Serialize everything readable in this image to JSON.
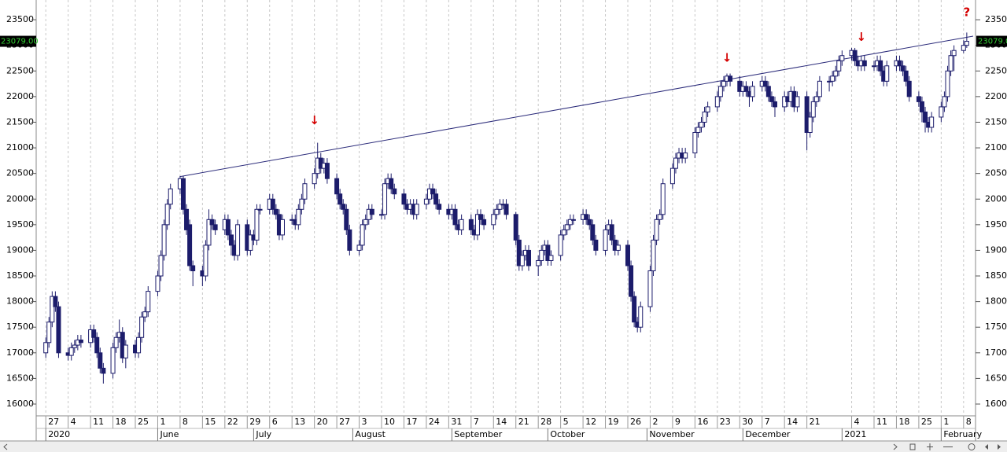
{
  "chart_data": {
    "type": "candlestick",
    "x": [
      "2020-04-27",
      "2020-04-28",
      "2020-04-29",
      "2020-04-30",
      "2020-05-01",
      "2020-05-04",
      "2020-05-05",
      "2020-05-06",
      "2020-05-07",
      "2020-05-08",
      "2020-05-11",
      "2020-05-12",
      "2020-05-13",
      "2020-05-14",
      "2020-05-15",
      "2020-05-18",
      "2020-05-19",
      "2020-05-20",
      "2020-05-21",
      "2020-05-22",
      "2020-05-25",
      "2020-05-26",
      "2020-05-27",
      "2020-05-28",
      "2020-05-29",
      "2020-06-01",
      "2020-06-02",
      "2020-06-03",
      "2020-06-04",
      "2020-06-05",
      "2020-06-08",
      "2020-06-09",
      "2020-06-10",
      "2020-06-11",
      "2020-06-12",
      "2020-06-15",
      "2020-06-16",
      "2020-06-17",
      "2020-06-18",
      "2020-06-19",
      "2020-06-22",
      "2020-06-23",
      "2020-06-24",
      "2020-06-25",
      "2020-06-26",
      "2020-06-29",
      "2020-06-30",
      "2020-07-01",
      "2020-07-02",
      "2020-07-03",
      "2020-07-06",
      "2020-07-07",
      "2020-07-08",
      "2020-07-09",
      "2020-07-10",
      "2020-07-13",
      "2020-07-14",
      "2020-07-15",
      "2020-07-16",
      "2020-07-17",
      "2020-07-20",
      "2020-07-21",
      "2020-07-22",
      "2020-07-23",
      "2020-07-24",
      "2020-07-27",
      "2020-07-28",
      "2020-07-29",
      "2020-07-30",
      "2020-07-31",
      "2020-08-03",
      "2020-08-04",
      "2020-08-05",
      "2020-08-06",
      "2020-08-07",
      "2020-08-10",
      "2020-08-11",
      "2020-08-12",
      "2020-08-13",
      "2020-08-14",
      "2020-08-17",
      "2020-08-18",
      "2020-08-19",
      "2020-08-20",
      "2020-08-21",
      "2020-08-24",
      "2020-08-25",
      "2020-08-26",
      "2020-08-27",
      "2020-08-28",
      "2020-08-31",
      "2020-09-01",
      "2020-09-02",
      "2020-09-03",
      "2020-09-04",
      "2020-09-07",
      "2020-09-08",
      "2020-09-09",
      "2020-09-10",
      "2020-09-11",
      "2020-09-14",
      "2020-09-15",
      "2020-09-16",
      "2020-09-17",
      "2020-09-18",
      "2020-09-21",
      "2020-09-22",
      "2020-09-23",
      "2020-09-24",
      "2020-09-25",
      "2020-09-28",
      "2020-09-29",
      "2020-09-30",
      "2020-10-01",
      "2020-10-02",
      "2020-10-05",
      "2020-10-06",
      "2020-10-07",
      "2020-10-08",
      "2020-10-09",
      "2020-10-12",
      "2020-10-13",
      "2020-10-14",
      "2020-10-15",
      "2020-10-16",
      "2020-10-19",
      "2020-10-20",
      "2020-10-21",
      "2020-10-22",
      "2020-10-23",
      "2020-10-26",
      "2020-10-27",
      "2020-10-28",
      "2020-10-29",
      "2020-10-30",
      "2020-11-02",
      "2020-11-03",
      "2020-11-04",
      "2020-11-05",
      "2020-11-06",
      "2020-11-09",
      "2020-11-10",
      "2020-11-11",
      "2020-11-12",
      "2020-11-13",
      "2020-11-16",
      "2020-11-17",
      "2020-11-18",
      "2020-11-19",
      "2020-11-20",
      "2020-11-23",
      "2020-11-24",
      "2020-11-25",
      "2020-11-26",
      "2020-11-27",
      "2020-11-30",
      "2020-12-01",
      "2020-12-02",
      "2020-12-03",
      "2020-12-04",
      "2020-12-07",
      "2020-12-08",
      "2020-12-09",
      "2020-12-10",
      "2020-12-11",
      "2020-12-14",
      "2020-12-15",
      "2020-12-16",
      "2020-12-17",
      "2020-12-18",
      "2020-12-21",
      "2020-12-22",
      "2020-12-23",
      "2020-12-24",
      "2020-12-25",
      "2020-12-28",
      "2020-12-29",
      "2020-12-30",
      "2020-12-31",
      "2021-01-01",
      "2021-01-04",
      "2021-01-05",
      "2021-01-06",
      "2021-01-07",
      "2021-01-08",
      "2021-01-11",
      "2021-01-12",
      "2021-01-13",
      "2021-01-14",
      "2021-01-15",
      "2021-01-18",
      "2021-01-19",
      "2021-01-20",
      "2021-01-21",
      "2021-01-22",
      "2021-01-25",
      "2021-01-26",
      "2021-01-27",
      "2021-01-28",
      "2021-01-29",
      "2021-02-01",
      "2021-02-02",
      "2021-02-03",
      "2021-02-04",
      "2021-02-05",
      "2021-02-08",
      "2021-02-09"
    ],
    "open": [
      17000,
      17200,
      17600,
      18100,
      17900,
      17000,
      16950,
      17100,
      17150,
      17250,
      17200,
      17450,
      17300,
      17000,
      16700,
      16600,
      17100,
      17300,
      17400,
      16900,
      17150,
      17000,
      17300,
      17700,
      17800,
      18200,
      18500,
      18900,
      19500,
      19900,
      20200,
      20400,
      19800,
      19500,
      18700,
      18600,
      18500,
      19100,
      19600,
      19500,
      19400,
      19600,
      19300,
      19100,
      18900,
      19500,
      19000,
      19300,
      19200,
      19800,
      19800,
      20000,
      19800,
      19700,
      19300,
      19600,
      19600,
      19500,
      19800,
      20000,
      20300,
      20500,
      20800,
      20600,
      20700,
      20400,
      20100,
      19900,
      19800,
      19400,
      19000,
      19100,
      19500,
      19600,
      19800,
      19700,
      19700,
      20300,
      20400,
      20200,
      20100,
      19900,
      19800,
      19900,
      19700,
      19900,
      20000,
      20200,
      20100,
      19900,
      19800,
      19700,
      19800,
      19500,
      19400,
      19600,
      19400,
      19300,
      19700,
      19600,
      19500,
      19700,
      19800,
      19900,
      19900,
      19700,
      19200,
      18700,
      18900,
      19000,
      18700,
      18800,
      19000,
      19100,
      18800,
      18900,
      19300,
      19400,
      19500,
      19600,
      19600,
      19700,
      19600,
      19500,
      19200,
      19000,
      19400,
      19500,
      19200,
      19000,
      19100,
      18700,
      18100,
      17600,
      17500,
      17900,
      18600,
      19200,
      19600,
      19700,
      20300,
      20600,
      20800,
      20900,
      20800,
      20900,
      21300,
      21400,
      21500,
      21700,
      21800,
      22000,
      22200,
      22300,
      22400,
      22300,
      22100,
      22200,
      22100,
      22000,
      22200,
      22300,
      22200,
      22000,
      21900,
      21800,
      22000,
      21900,
      22100,
      21800,
      22000,
      21300,
      21600,
      21900,
      22000,
      22300,
      22300,
      22400,
      22500,
      22700,
      22800,
      22900,
      22700,
      22600,
      22700,
      22600,
      22600,
      22700,
      22500,
      22300,
      22600,
      22700,
      22600,
      22500,
      22300,
      22000,
      21900,
      21700,
      21500,
      21400,
      21600,
      21800,
      22000,
      22500,
      22800,
      22900,
      23000
    ],
    "high": [
      17300,
      17700,
      18200,
      18200,
      18000,
      17100,
      17200,
      17250,
      17350,
      17350,
      17550,
      17550,
      17400,
      17100,
      16800,
      17200,
      17400,
      17650,
      17500,
      17250,
      17250,
      17400,
      17800,
      17900,
      18300,
      18600,
      19000,
      19600,
      20000,
      20300,
      20450,
      20450,
      19900,
      19600,
      18800,
      18700,
      19200,
      19800,
      19700,
      19600,
      19700,
      19700,
      19400,
      19200,
      19600,
      19600,
      19400,
      19400,
      19900,
      19900,
      20100,
      20100,
      19900,
      19800,
      19700,
      19700,
      19700,
      19900,
      20100,
      20400,
      20600,
      21100,
      20900,
      20800,
      20800,
      20500,
      20200,
      20000,
      19900,
      19500,
      19200,
      19600,
      19700,
      19900,
      19900,
      19800,
      20400,
      20500,
      20500,
      20300,
      20200,
      20000,
      20000,
      20000,
      20000,
      20100,
      20300,
      20300,
      20200,
      20000,
      19900,
      19900,
      19900,
      19600,
      19700,
      19700,
      19500,
      19800,
      19800,
      19700,
      19800,
      19900,
      20000,
      20000,
      20000,
      19750,
      19300,
      19000,
      19100,
      19100,
      18900,
      19100,
      19200,
      19200,
      19000,
      19400,
      19500,
      19600,
      19700,
      19700,
      19800,
      19800,
      19700,
      19600,
      19300,
      19500,
      19600,
      19600,
      19300,
      19200,
      19200,
      18800,
      18200,
      17700,
      18000,
      18700,
      19300,
      19700,
      19800,
      20400,
      20700,
      20900,
      21000,
      21000,
      21000,
      21400,
      21500,
      21600,
      21800,
      21900,
      22100,
      22300,
      22400,
      22450,
      22450,
      22400,
      22300,
      22300,
      22200,
      22300,
      22400,
      22400,
      22300,
      22100,
      22000,
      22100,
      22100,
      22200,
      22200,
      22100,
      22100,
      21700,
      22000,
      22100,
      22400,
      22400,
      22500,
      22600,
      22800,
      22900,
      22950,
      22950,
      22800,
      22800,
      22800,
      22700,
      22800,
      22800,
      22600,
      22700,
      22800,
      22800,
      22700,
      22600,
      22400,
      22100,
      22000,
      21800,
      21600,
      21700,
      21900,
      22100,
      22600,
      22900,
      23000,
      23100,
      23250
    ],
    "low": [
      16900,
      17100,
      17500,
      17800,
      16900,
      16850,
      16850,
      17000,
      17050,
      17100,
      17100,
      17200,
      16900,
      16600,
      16400,
      16500,
      17000,
      17200,
      16800,
      16700,
      16900,
      16900,
      17200,
      17600,
      17700,
      18100,
      18400,
      18800,
      19400,
      19800,
      20100,
      19700,
      19300,
      18600,
      18300,
      18300,
      18400,
      19000,
      19400,
      19300,
      19300,
      19200,
      18900,
      18800,
      18800,
      18900,
      18900,
      19100,
      19100,
      19700,
      19700,
      19700,
      19600,
      19200,
      19200,
      19500,
      19400,
      19400,
      19700,
      19900,
      20200,
      20400,
      20500,
      20500,
      20300,
      20000,
      19800,
      19700,
      19300,
      18900,
      18900,
      19000,
      19400,
      19500,
      19600,
      19600,
      19600,
      20200,
      20100,
      20000,
      19800,
      19700,
      19700,
      19600,
      19600,
      19800,
      19900,
      20000,
      19800,
      19700,
      19600,
      19600,
      19400,
      19300,
      19300,
      19300,
      19200,
      19200,
      19500,
      19400,
      19400,
      19600,
      19700,
      19800,
      19600,
      19100,
      18600,
      18600,
      18800,
      18600,
      18500,
      18700,
      18900,
      18700,
      18700,
      18800,
      19200,
      19300,
      19400,
      19500,
      19500,
      19500,
      19400,
      19100,
      18900,
      18900,
      19300,
      19100,
      18900,
      18900,
      18600,
      18000,
      17500,
      17400,
      17400,
      17800,
      18500,
      19100,
      19500,
      19600,
      20200,
      20500,
      20700,
      20700,
      20700,
      20800,
      21200,
      21300,
      21400,
      21600,
      21700,
      21900,
      22100,
      22200,
      22200,
      22000,
      22000,
      22000,
      21800,
      21900,
      22100,
      22100,
      21900,
      21800,
      21600,
      21700,
      21800,
      21800,
      21700,
      21700,
      20950,
      21200,
      21500,
      21800,
      21900,
      22100,
      22200,
      22300,
      22400,
      22600,
      22700,
      22600,
      22500,
      22500,
      22500,
      22500,
      22500,
      22400,
      22200,
      22200,
      22500,
      22500,
      22400,
      22200,
      21900,
      21800,
      21500,
      21300,
      21300,
      21300,
      21500,
      21700,
      21900,
      22400,
      22500,
      22850,
      22950
    ],
    "close": [
      17200,
      17600,
      18100,
      17900,
      17000,
      16950,
      17100,
      17150,
      17250,
      17200,
      17450,
      17300,
      17000,
      16700,
      16600,
      17100,
      17300,
      17400,
      16900,
      17150,
      17000,
      17300,
      17700,
      17800,
      18200,
      18500,
      18900,
      19500,
      19900,
      20200,
      20400,
      19800,
      19400,
      18700,
      18600,
      18500,
      19100,
      19600,
      19500,
      19400,
      19600,
      19300,
      19100,
      18900,
      19500,
      19000,
      19300,
      19200,
      19800,
      19800,
      20000,
      19800,
      19700,
      19300,
      19600,
      19600,
      19500,
      19800,
      20000,
      20300,
      20500,
      20800,
      20600,
      20700,
      20400,
      20100,
      19900,
      19800,
      19400,
      19000,
      19100,
      19500,
      19600,
      19800,
      19700,
      19700,
      20300,
      20400,
      20200,
      20100,
      19900,
      19800,
      19900,
      19700,
      19900,
      20000,
      20200,
      20100,
      19900,
      19800,
      19700,
      19800,
      19500,
      19400,
      19600,
      19400,
      19300,
      19700,
      19600,
      19500,
      19700,
      19800,
      19900,
      19900,
      19700,
      19200,
      18700,
      18900,
      19000,
      18700,
      18800,
      19000,
      19100,
      18800,
      18900,
      19300,
      19400,
      19500,
      19600,
      19600,
      19700,
      19600,
      19500,
      19200,
      19000,
      19400,
      19500,
      19200,
      19000,
      19100,
      18700,
      18100,
      17600,
      17500,
      17900,
      18600,
      19200,
      19600,
      19700,
      20300,
      20600,
      20800,
      20900,
      20800,
      20900,
      21300,
      21400,
      21500,
      21700,
      21800,
      22000,
      22200,
      22300,
      22400,
      22300,
      22100,
      22200,
      22100,
      22000,
      22200,
      22300,
      22200,
      22000,
      21900,
      21800,
      22000,
      21900,
      22100,
      21800,
      22000,
      21300,
      21600,
      21900,
      22000,
      22300,
      22300,
      22400,
      22500,
      22700,
      22800,
      22900,
      22700,
      22600,
      22700,
      22600,
      22600,
      22700,
      22500,
      22300,
      22600,
      22700,
      22600,
      22500,
      22300,
      22000,
      21900,
      21700,
      21500,
      21400,
      21600,
      21800,
      22000,
      22500,
      22800,
      22900,
      23000,
      23079
    ],
    "up_color": "#ffffff",
    "down_color": "#1c1c6b",
    "line_color": "#1c1c6b",
    "xlim": [
      "2020-04-24",
      "2021-02-11"
    ],
    "ylim": [
      15770,
      23885
    ],
    "yticks": [
      16000,
      16500,
      17000,
      17500,
      18000,
      18500,
      19000,
      19500,
      20000,
      20500,
      21000,
      21500,
      22000,
      22500,
      23000,
      23500
    ],
    "xticks": [
      {
        "value": "2020-04-27",
        "label": "27"
      },
      {
        "value": "2020-05-04",
        "label": "4"
      },
      {
        "value": "2020-05-11",
        "label": "11"
      },
      {
        "value": "2020-05-18",
        "label": "18"
      },
      {
        "value": "2020-05-25",
        "label": "25"
      },
      {
        "value": "2020-06-01",
        "label": "1"
      },
      {
        "value": "2020-06-08",
        "label": "8"
      },
      {
        "value": "2020-06-15",
        "label": "15"
      },
      {
        "value": "2020-06-22",
        "label": "22"
      },
      {
        "value": "2020-06-29",
        "label": "29"
      },
      {
        "value": "2020-07-06",
        "label": "6"
      },
      {
        "value": "2020-07-13",
        "label": "13"
      },
      {
        "value": "2020-07-20",
        "label": "20"
      },
      {
        "value": "2020-07-27",
        "label": "27"
      },
      {
        "value": "2020-08-03",
        "label": "3"
      },
      {
        "value": "2020-08-10",
        "label": "10"
      },
      {
        "value": "2020-08-17",
        "label": "17"
      },
      {
        "value": "2020-08-24",
        "label": "24"
      },
      {
        "value": "2020-08-31",
        "label": "31"
      },
      {
        "value": "2020-09-07",
        "label": "7"
      },
      {
        "value": "2020-09-14",
        "label": "14"
      },
      {
        "value": "2020-09-21",
        "label": "21"
      },
      {
        "value": "2020-09-28",
        "label": "28"
      },
      {
        "value": "2020-10-05",
        "label": "5"
      },
      {
        "value": "2020-10-12",
        "label": "12"
      },
      {
        "value": "2020-10-19",
        "label": "19"
      },
      {
        "value": "2020-10-26",
        "label": "26"
      },
      {
        "value": "2020-11-02",
        "label": "2"
      },
      {
        "value": "2020-11-09",
        "label": "9"
      },
      {
        "value": "2020-11-16",
        "label": "16"
      },
      {
        "value": "2020-11-23",
        "label": "23"
      },
      {
        "value": "2020-11-30",
        "label": "30"
      },
      {
        "value": "2020-12-07",
        "label": "7"
      },
      {
        "value": "2020-12-14",
        "label": "14"
      },
      {
        "value": "2020-12-21",
        "label": "21"
      },
      {
        "value": "2021-01-04",
        "label": "4"
      },
      {
        "value": "2021-01-11",
        "label": "11"
      },
      {
        "value": "2021-01-18",
        "label": "18"
      },
      {
        "value": "2021-01-25",
        "label": "25"
      },
      {
        "value": "2021-02-01",
        "label": "1"
      },
      {
        "value": "2021-02-08",
        "label": "8"
      }
    ],
    "month_ticks": [
      {
        "value": "2020-04-27",
        "label": "2020"
      },
      {
        "value": "2020-06-01",
        "label": "June"
      },
      {
        "value": "2020-07-01",
        "label": "July"
      },
      {
        "value": "2020-08-01",
        "label": "August"
      },
      {
        "value": "2020-09-01",
        "label": "September"
      },
      {
        "value": "2020-10-01",
        "label": "October"
      },
      {
        "value": "2020-11-01",
        "label": "November"
      },
      {
        "value": "2020-12-01",
        "label": "December"
      },
      {
        "value": "2021-01-01",
        "label": "2021"
      },
      {
        "value": "2021-02-01",
        "label": "February"
      }
    ],
    "grid": true,
    "trendline": {
      "x": [
        "2020-06-08",
        "2021-02-11"
      ],
      "values": [
        20440,
        23180
      ],
      "color": "#2b2b7a"
    },
    "annotations": [
      {
        "x": "2020-07-20",
        "y": 21530,
        "text": "↓"
      },
      {
        "x": "2020-11-26",
        "y": 22750,
        "text": "↓"
      },
      {
        "x": "2021-01-07",
        "y": 23160,
        "text": "↓"
      },
      {
        "x": "2021-02-09",
        "y": 23640,
        "text": "?"
      }
    ],
    "annotation_color": "#d40000",
    "last_price": {
      "value": 23079,
      "label": "23079.00"
    }
  }
}
